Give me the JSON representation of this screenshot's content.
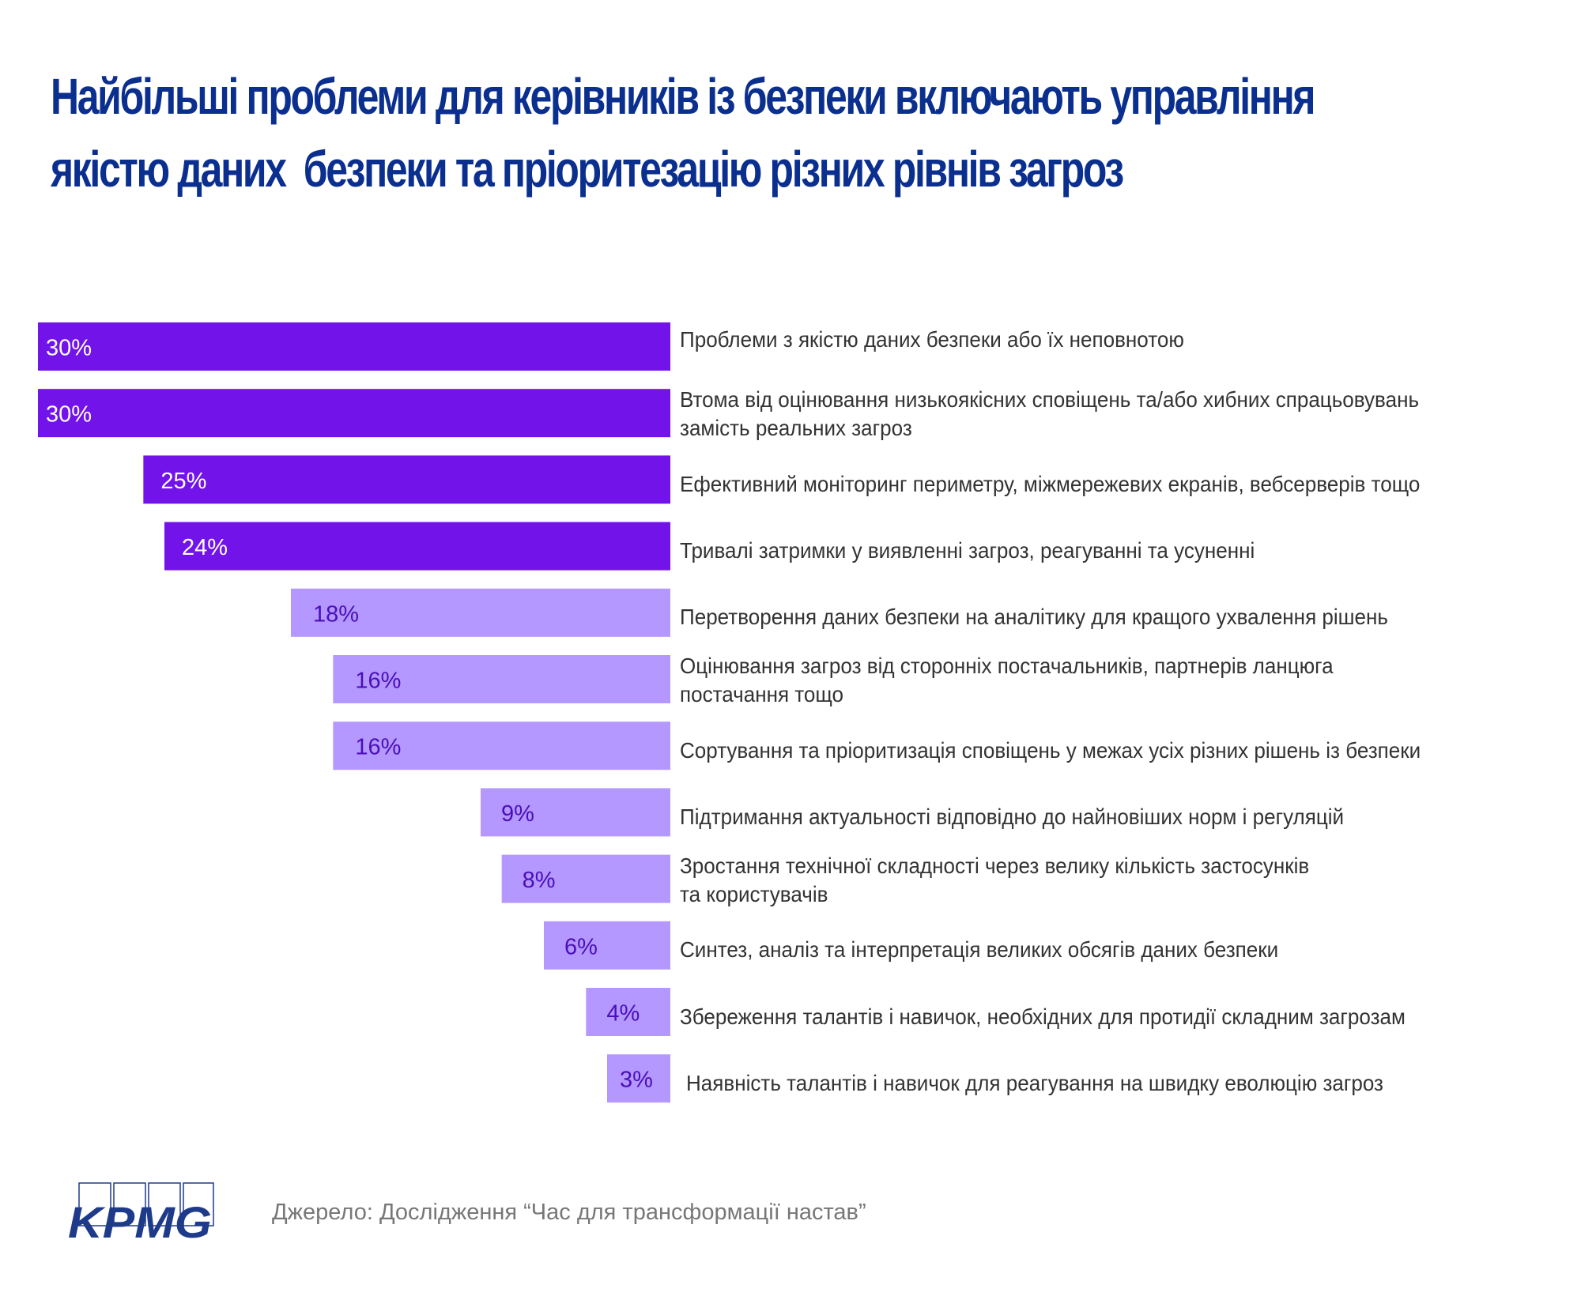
{
  "title": {
    "line1": "Найбільші проблеми для керівників із безпеки включають управління",
    "line2": "якістю даних  безпеки та пріоритезацію різних рівнів загроз"
  },
  "chart_data": {
    "type": "bar",
    "orientation": "horizontal",
    "title": "Найбільші проблеми для керівників із безпеки включають управління якістю даних  безпеки та пріоритезацію різних рівнів загроз",
    "xlabel": "",
    "ylabel": "",
    "xlim": [
      0,
      30
    ],
    "unit": "%",
    "categories": [
      "Проблеми з якістю даних безпеки або їх неповнотою",
      "Втома від оцінювання низькоякісних сповіщень та/або хибних спрацьовувань замість реальних загроз",
      "Ефективний моніторинг периметру, міжмережевих екранів, вебсерверів тощо",
      "Тривалі затримки у виявленні загроз, реагуванні та усуненні",
      "Перетворення даних безпеки на аналітику для кращого ухвалення рішень",
      "Оцінювання загроз від сторонніх постачальників, партнерів ланцюга постачання тощо",
      "Сортування та пріоритизація сповіщень у межах усіх різних рішень із безпеки",
      "Підтримання актуальності відповідно до найновіших норм і регуляцій",
      "Зростання технічної складності через велику кількість застосунків та користувачів",
      "Синтез, аналіз та інтерпретація великих обсягів даних безпеки",
      "Збереження талантів і навичок, необхідних для протидії складним загрозам",
      "Наявність талантів і навичок для реагування на швидку еволюцію загроз"
    ],
    "label_lines": [
      [
        "Проблеми з якістю даних безпеки або їх неповнотою"
      ],
      [
        "Втома від оцінювання низькоякісних сповіщень та/або хибних спрацьовувань",
        "замість реальних загроз"
      ],
      [
        "Ефективний моніторинг периметру, міжмережевих екранів, вебсерверів тощо"
      ],
      [
        "Тривалі затримки у виявленні загроз, реагуванні та усуненні"
      ],
      [
        "Перетворення даних безпеки на аналітику для кращого ухвалення рішень"
      ],
      [
        "Оцінювання загроз від сторонніх постачальників, партнерів ланцюга",
        "постачання тощо"
      ],
      [
        "Сортування та пріоритизація сповіщень у межах усіх різних рішень із безпеки"
      ],
      [
        "Підтримання актуальності відповідно до найновіших норм і регуляцій"
      ],
      [
        "Зростання технічної складності через велику кількість застосунків",
        "та користувачів"
      ],
      [
        "Синтез, аналіз та інтерпретація великих обсягів даних безпеки"
      ],
      [
        "Збереження талантів і навичок, необхідних для протидії складним загрозам"
      ],
      [
        "Наявність талантів і навичок для реагування на швидку еволюцію загроз"
      ]
    ],
    "values": [
      30,
      30,
      25,
      24,
      18,
      16,
      16,
      9,
      8,
      6,
      4,
      3
    ],
    "data_labels": [
      "30%",
      "30%",
      "25%",
      "24%",
      "18%",
      "16%",
      "16%",
      "9%",
      "8%",
      "6%",
      "4%",
      "3%"
    ],
    "highlight_count": 4,
    "colors": {
      "highlight_bar": "#7213ea",
      "highlight_text": "#ffffff",
      "normal_bar": "#b497ff",
      "normal_text": "#4a0fb8",
      "category_text": "#333333"
    },
    "grid": false,
    "legend": "none"
  },
  "footer": {
    "source": "Джерело: Дослідження “Час для трансформації настав”",
    "logo_text": "KPMG",
    "logo_color": "#1e3a8a"
  }
}
